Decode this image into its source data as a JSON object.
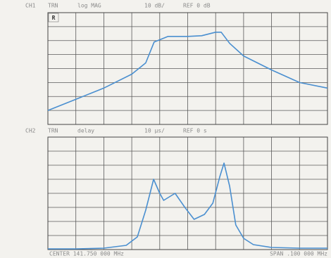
{
  "chart_data": [
    {
      "type": "line",
      "channel": "CH1",
      "mode": "TRN",
      "format": "log MAG",
      "scale": "10 dB/",
      "reference": "REF 0 dB",
      "marker_label": "R",
      "x": [
        0,
        1,
        2,
        3,
        3.5,
        3.8,
        4.3,
        5,
        5.5,
        6,
        6.2,
        6.5,
        7,
        8,
        9,
        10
      ],
      "values": [
        1.0,
        1.8,
        2.6,
        3.6,
        4.4,
        5.9,
        6.3,
        6.3,
        6.35,
        6.6,
        6.6,
        5.8,
        4.9,
        3.9,
        3.0,
        2.6
      ],
      "color": "#4a8fd0",
      "xlim": [
        0,
        10
      ],
      "ylim": [
        0,
        8
      ],
      "xticks": [
        0,
        1,
        2,
        3,
        4,
        5,
        6,
        7,
        8,
        9,
        10
      ],
      "yticks": [
        0,
        1,
        2,
        3,
        4,
        5,
        6,
        7,
        8
      ],
      "grid": true
    },
    {
      "type": "line",
      "channel": "CH2",
      "mode": "TRN",
      "format": "delay",
      "scale": "10 µs/",
      "reference": "REF 0 s",
      "x": [
        0,
        1,
        2,
        2.8,
        3.2,
        3.5,
        3.78,
        4.0,
        4.14,
        4.55,
        4.9,
        5.23,
        5.6,
        5.9,
        6.15,
        6.3,
        6.5,
        6.72,
        7.0,
        7.35,
        8,
        9,
        10
      ],
      "values": [
        0.05,
        0.05,
        0.1,
        0.3,
        0.9,
        2.8,
        5.0,
        4.0,
        3.5,
        4.0,
        3.0,
        2.15,
        2.5,
        3.3,
        5.2,
        6.15,
        4.5,
        1.75,
        0.8,
        0.35,
        0.15,
        0.1,
        0.1
      ],
      "color": "#4a8fd0",
      "xlim": [
        0,
        10
      ],
      "ylim": [
        0,
        8
      ],
      "xticks": [
        0,
        1,
        2,
        3,
        4,
        5,
        6,
        7,
        8,
        9,
        10
      ],
      "yticks": [
        0,
        1,
        2,
        3,
        4,
        5,
        6,
        7,
        8
      ],
      "grid": true
    }
  ],
  "footer": {
    "center": "CENTER 141.750 000 MHz",
    "span": "SPAN .100 000 MHz"
  }
}
